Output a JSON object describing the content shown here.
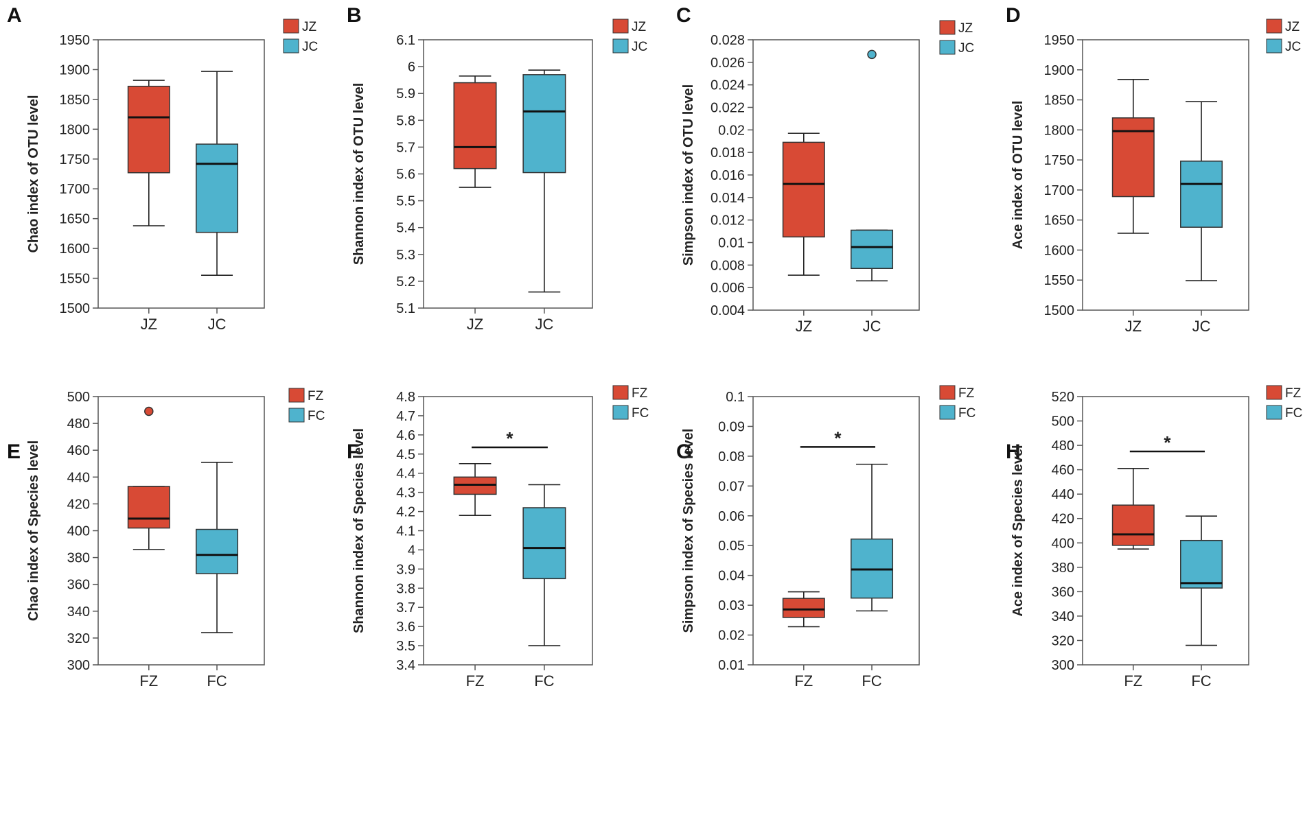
{
  "colors": {
    "red": "#d84a35",
    "blue": "#4fb3cd",
    "axis": "#555555",
    "line": "#222222"
  },
  "chart_data": [
    {
      "id": "A",
      "type": "box",
      "title": "A",
      "ylabel": "Chao index of OTU level",
      "ylim": [
        1500,
        1950
      ],
      "ticks": [
        1500,
        1550,
        1600,
        1650,
        1700,
        1750,
        1800,
        1850,
        1900,
        1950
      ],
      "tick_labels": [
        "1500",
        "1550",
        "1600",
        "1650",
        "1700",
        "1750",
        "1800",
        "1850",
        "1900",
        "1950"
      ],
      "categories": [
        "JZ",
        "JC"
      ],
      "legend": [
        "JZ",
        "JC"
      ],
      "boxes": [
        {
          "name": "JZ",
          "whisker_low": 1638,
          "q1": 1727,
          "median": 1820,
          "q3": 1872,
          "whisker_high": 1882,
          "outliers": []
        },
        {
          "name": "JC",
          "whisker_low": 1555,
          "q1": 1627,
          "median": 1742,
          "q3": 1775,
          "whisker_high": 1897,
          "outliers": []
        }
      ],
      "significance": null
    },
    {
      "id": "B",
      "type": "box",
      "title": "B",
      "ylabel": "Shannon index of OTU level",
      "ylim": [
        5.1,
        6.1
      ],
      "ticks": [
        5.1,
        5.2,
        5.3,
        5.4,
        5.5,
        5.6,
        5.7,
        5.8,
        5.9,
        6.0,
        6.1
      ],
      "tick_labels": [
        "5.1",
        "5.2",
        "5.3",
        "5.4",
        "5.5",
        "5.6",
        "5.7",
        "5.8",
        "5.9",
        "6",
        "6.1"
      ],
      "categories": [
        "JZ",
        "JC"
      ],
      "legend": [
        "JZ",
        "JC"
      ],
      "boxes": [
        {
          "name": "JZ",
          "whisker_low": 5.55,
          "q1": 5.62,
          "median": 5.7,
          "q3": 5.94,
          "whisker_high": 5.965,
          "outliers": []
        },
        {
          "name": "JC",
          "whisker_low": 5.16,
          "q1": 5.605,
          "median": 5.833,
          "q3": 5.97,
          "whisker_high": 5.987,
          "outliers": []
        }
      ],
      "significance": null
    },
    {
      "id": "C",
      "type": "box",
      "title": "C",
      "ylabel": "Simpson index of OTU level",
      "ylim": [
        0.004,
        0.028
      ],
      "ticks": [
        0.004,
        0.006,
        0.008,
        0.01,
        0.012,
        0.014,
        0.016,
        0.018,
        0.02,
        0.022,
        0.024,
        0.026,
        0.028
      ],
      "tick_labels": [
        "0.004",
        "0.006",
        "0.008",
        "0.01",
        "0.012",
        "0.014",
        "0.016",
        "0.018",
        "0.02",
        "0.022",
        "0.024",
        "0.026",
        "0.028"
      ],
      "categories": [
        "JZ",
        "JC"
      ],
      "legend": [
        "JZ",
        "JC"
      ],
      "boxes": [
        {
          "name": "JZ",
          "whisker_low": 0.0071,
          "q1": 0.0105,
          "median": 0.0152,
          "q3": 0.0189,
          "whisker_high": 0.0197,
          "outliers": []
        },
        {
          "name": "JC",
          "whisker_low": 0.0066,
          "q1": 0.0077,
          "median": 0.0096,
          "q3": 0.0111,
          "whisker_high": 0.0111,
          "outliers": [
            0.0267
          ]
        }
      ],
      "significance": null
    },
    {
      "id": "D",
      "type": "box",
      "title": "D",
      "ylabel": "Ace index of OTU level",
      "ylim": [
        1500,
        1950
      ],
      "ticks": [
        1500,
        1550,
        1600,
        1650,
        1700,
        1750,
        1800,
        1850,
        1900,
        1950
      ],
      "tick_labels": [
        "1500",
        "1550",
        "1600",
        "1650",
        "1700",
        "1750",
        "1800",
        "1850",
        "1900",
        "1950"
      ],
      "categories": [
        "JZ",
        "JC"
      ],
      "legend": [
        "JZ",
        "JC"
      ],
      "boxes": [
        {
          "name": "JZ",
          "whisker_low": 1628,
          "q1": 1689,
          "median": 1798,
          "q3": 1820,
          "whisker_high": 1884,
          "outliers": []
        },
        {
          "name": "JC",
          "whisker_low": 1549,
          "q1": 1638,
          "median": 1710,
          "q3": 1748,
          "whisker_high": 1847,
          "outliers": []
        }
      ],
      "significance": null
    },
    {
      "id": "E",
      "type": "box",
      "title": "E",
      "ylabel": "Chao index of Species level",
      "ylim": [
        300,
        500
      ],
      "ticks": [
        300,
        320,
        340,
        360,
        380,
        400,
        420,
        440,
        460,
        480,
        500
      ],
      "tick_labels": [
        "300",
        "320",
        "340",
        "360",
        "380",
        "400",
        "420",
        "440",
        "460",
        "480",
        "500"
      ],
      "categories": [
        "FZ",
        "FC"
      ],
      "legend": [
        "FZ",
        "FC"
      ],
      "boxes": [
        {
          "name": "FZ",
          "whisker_low": 386,
          "q1": 402,
          "median": 409,
          "q3": 433,
          "whisker_high": 433,
          "outliers": [
            489
          ]
        },
        {
          "name": "FC",
          "whisker_low": 324,
          "q1": 368,
          "median": 382,
          "q3": 401,
          "whisker_high": 451,
          "outliers": []
        }
      ],
      "significance": null
    },
    {
      "id": "F",
      "type": "box",
      "title": "F",
      "ylabel": "Shannon index of Species level",
      "ylim": [
        3.4,
        4.8
      ],
      "ticks": [
        3.4,
        3.5,
        3.6,
        3.7,
        3.8,
        3.9,
        4.0,
        4.1,
        4.2,
        4.3,
        4.4,
        4.5,
        4.6,
        4.7,
        4.8
      ],
      "tick_labels": [
        "3.4",
        "3.5",
        "3.6",
        "3.7",
        "3.8",
        "3.9",
        "4",
        "4.1",
        "4.2",
        "4.3",
        "4.4",
        "4.5",
        "4.6",
        "4.7",
        "4.8"
      ],
      "categories": [
        "FZ",
        "FC"
      ],
      "legend": [
        "FZ",
        "FC"
      ],
      "boxes": [
        {
          "name": "FZ",
          "whisker_low": 4.18,
          "q1": 4.29,
          "median": 4.34,
          "q3": 4.38,
          "whisker_high": 4.45,
          "outliers": []
        },
        {
          "name": "FC",
          "whisker_low": 3.5,
          "q1": 3.85,
          "median": 4.01,
          "q3": 4.22,
          "whisker_high": 4.34,
          "outliers": []
        }
      ],
      "significance": {
        "label": "*",
        "y": 4.535
      }
    },
    {
      "id": "G",
      "type": "box",
      "title": "G",
      "ylabel": "Simpson index of Species level",
      "ylim": [
        0.01,
        0.1
      ],
      "ticks": [
        0.01,
        0.02,
        0.03,
        0.04,
        0.05,
        0.06,
        0.07,
        0.08,
        0.09,
        0.1
      ],
      "tick_labels": [
        "0.01",
        "0.02",
        "0.03",
        "0.04",
        "0.05",
        "0.06",
        "0.07",
        "0.08",
        "0.09",
        "0.1"
      ],
      "categories": [
        "FZ",
        "FC"
      ],
      "legend": [
        "FZ",
        "FC"
      ],
      "boxes": [
        {
          "name": "FZ",
          "whisker_low": 0.0228,
          "q1": 0.0259,
          "median": 0.0286,
          "q3": 0.0323,
          "whisker_high": 0.0345,
          "outliers": []
        },
        {
          "name": "FC",
          "whisker_low": 0.0281,
          "q1": 0.0324,
          "median": 0.042,
          "q3": 0.0522,
          "whisker_high": 0.0773,
          "outliers": []
        }
      ],
      "significance": {
        "label": "*",
        "y": 0.0831
      }
    },
    {
      "id": "H",
      "type": "box",
      "title": "H",
      "ylabel": "Ace index of Species level",
      "ylim": [
        300,
        520
      ],
      "ticks": [
        300,
        320,
        340,
        360,
        380,
        400,
        420,
        440,
        460,
        480,
        500,
        520
      ],
      "tick_labels": [
        "300",
        "320",
        "340",
        "360",
        "380",
        "400",
        "420",
        "440",
        "460",
        "480",
        "500",
        "520"
      ],
      "categories": [
        "FZ",
        "FC"
      ],
      "legend": [
        "FZ",
        "FC"
      ],
      "boxes": [
        {
          "name": "FZ",
          "whisker_low": 395,
          "q1": 398,
          "median": 407,
          "q3": 431,
          "whisker_high": 461,
          "outliers": []
        },
        {
          "name": "FC",
          "whisker_low": 316,
          "q1": 363,
          "median": 367,
          "q3": 402,
          "whisker_high": 422,
          "outliers": []
        }
      ],
      "significance": {
        "label": "*",
        "y": 475
      }
    }
  ]
}
